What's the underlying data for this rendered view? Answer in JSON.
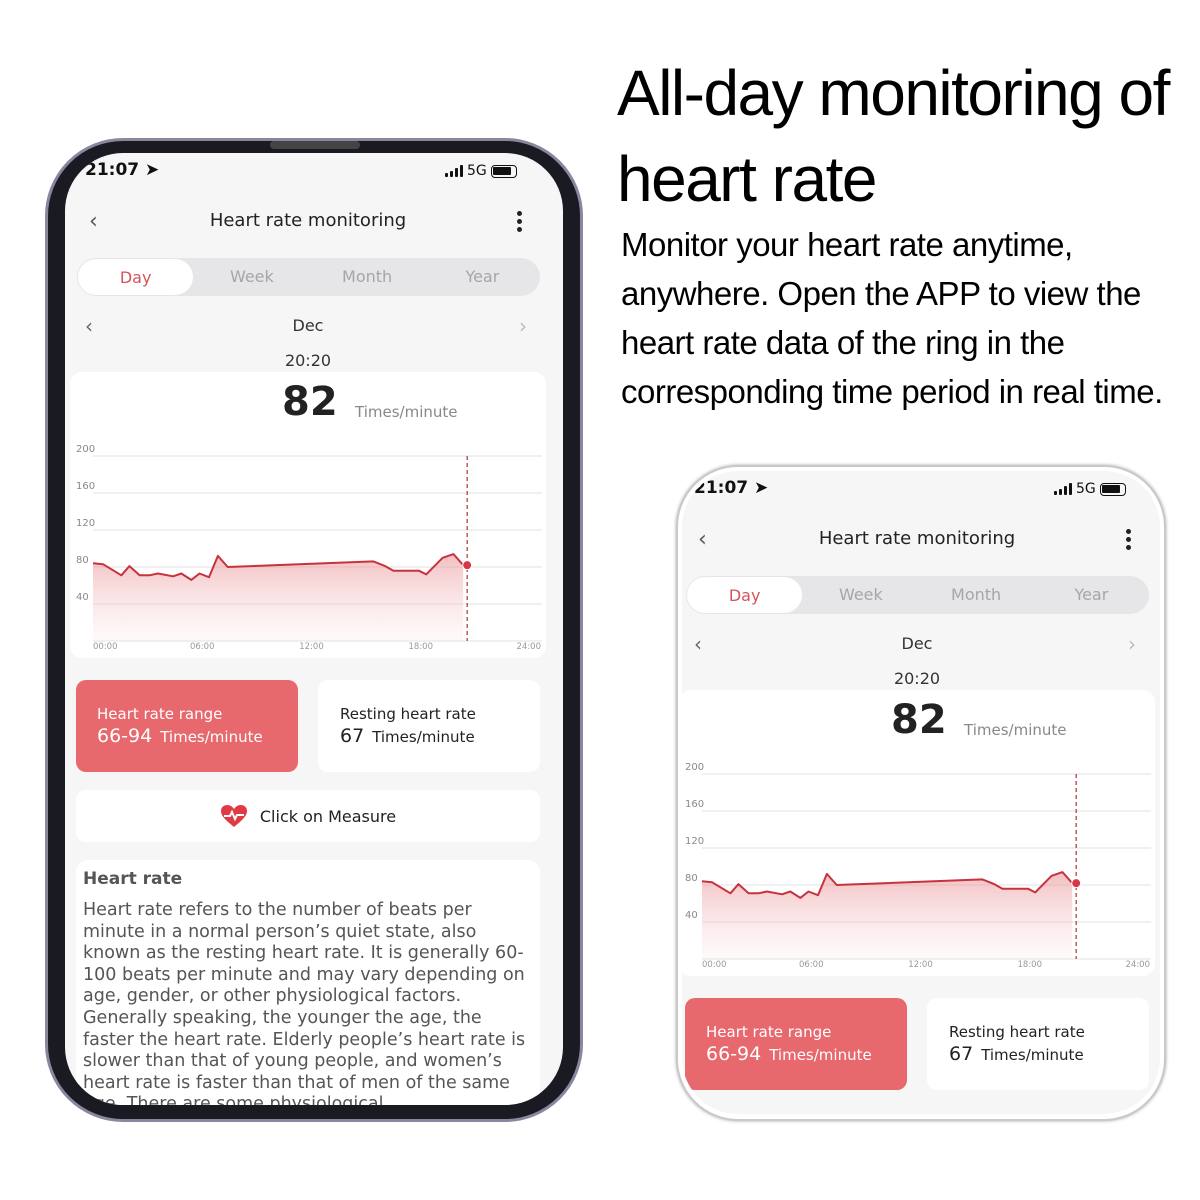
{
  "headline": "All-day monitoring of heart rate",
  "description": "Monitor your heart rate anytime, anywhere. Open the APP to view the heart rate data of the ring in the corresponding time period in real time.",
  "app": {
    "status": {
      "time": "21:07",
      "network": "5G"
    },
    "header": {
      "title": "Heart rate monitoring",
      "back_icon": "chevron-left-icon",
      "menu_icon": "more-vertical-icon"
    },
    "tabs": [
      {
        "label": "Day",
        "active": true
      },
      {
        "label": "Week"
      },
      {
        "label": "Month"
      },
      {
        "label": "Year"
      }
    ],
    "period": {
      "label": "Dec",
      "time": "20:20"
    },
    "reading": {
      "value": "82",
      "unit": "Times/minute"
    },
    "range_card": {
      "label": "Heart rate range",
      "value": "66-94",
      "unit": "Times/minute"
    },
    "resting_card": {
      "label": "Resting heart rate",
      "value": "67",
      "unit": "Times/minute"
    },
    "measure": {
      "label": "Click on Measure",
      "icon": "heart-pulse-icon"
    },
    "info": {
      "title": "Heart rate",
      "text": "Heart rate refers to the number of beats per minute in a normal person’s quiet state, also known as the resting heart rate. It is generally 60-100 beats per minute and may vary depending on age, gender, or other physiological factors. Generally speaking, the younger the age, the faster the heart rate. Elderly people’s heart rate is slower than that of young people, and women’s heart rate is faster than that of men of the same age. There are some physiological"
    },
    "colors": {
      "accent": "#d5535a",
      "line": "#c8323c",
      "card_red": "#e7686d"
    }
  },
  "chart_data": {
    "type": "area",
    "y_ticks": [
      "200",
      "160",
      "120",
      "80",
      "40"
    ],
    "x_ticks": [
      "00:00",
      "06:00",
      "12:00",
      "18:00",
      "24:00"
    ],
    "xlim": [
      0,
      24
    ],
    "ylim": [
      0,
      200
    ],
    "grid": true,
    "selected": {
      "x": 20.33,
      "y": 82
    },
    "x": [
      0,
      0.55,
      1.56,
      2.0,
      2.56,
      3.1,
      3.57,
      4.4,
      4.85,
      5.4,
      5.85,
      6.37,
      6.86,
      7.4,
      15.4,
      16.05,
      16.5,
      17.9,
      18.3,
      19.2,
      19.8,
      20.33
    ],
    "y": [
      84,
      83,
      71,
      81,
      71,
      71,
      73,
      70,
      73,
      66,
      73,
      69,
      92,
      80,
      86,
      81,
      76,
      76,
      72,
      90,
      94,
      82
    ]
  }
}
